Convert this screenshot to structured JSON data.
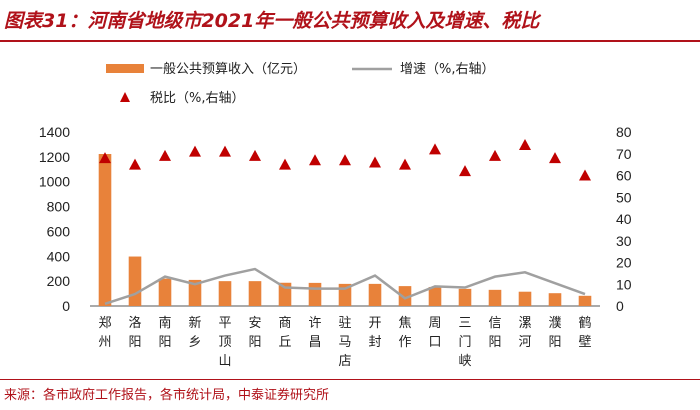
{
  "title": "图表31：河南省地级市2021年一般公共预算收入及增速、税比",
  "source": "来源：各市政府工作报告，各市统计局，中泰证券研究所",
  "chart_data": {
    "type": "bar",
    "categories": [
      "郑州",
      "洛阳",
      "南阳",
      "新乡",
      "平顶山",
      "安阳",
      "商丘",
      "许昌",
      "驻马店",
      "开封",
      "焦作",
      "周口",
      "三门峡",
      "信阳",
      "漯河",
      "濮阳",
      "鹤壁"
    ],
    "series": [
      {
        "name": "一般公共预算收入（亿元）",
        "type": "bar",
        "axis": "left",
        "color": "#e8823a",
        "values": [
          1223,
          398,
          220,
          210,
          200,
          200,
          187,
          186,
          178,
          178,
          160,
          153,
          138,
          130,
          115,
          103,
          82
        ]
      },
      {
        "name": "增速（%,右轴）",
        "type": "line",
        "axis": "right",
        "color": "#a0a0a0",
        "values": [
          1.0,
          5.5,
          13.5,
          10.0,
          14.0,
          17.0,
          8.5,
          8.0,
          8.0,
          14.0,
          3.5,
          9.0,
          8.5,
          13.5,
          15.5,
          10.5,
          5.5
        ]
      },
      {
        "name": "税比（%,右轴）",
        "type": "scatter",
        "axis": "right",
        "color": "#c00000",
        "values": [
          68,
          65,
          69,
          71,
          71,
          69,
          65,
          67,
          67,
          66,
          65,
          72,
          62,
          69,
          74,
          68,
          60
        ]
      }
    ],
    "yleft": {
      "lim": [
        0,
        1400
      ],
      "ticks": [
        "0",
        "200",
        "400",
        "600",
        "800",
        "1000",
        "1200",
        "1400"
      ]
    },
    "yright": {
      "lim": [
        0,
        80
      ],
      "ticks": [
        "0",
        "10",
        "20",
        "30",
        "40",
        "50",
        "60",
        "70",
        "80"
      ]
    },
    "legend_position": "top",
    "grid": false
  }
}
